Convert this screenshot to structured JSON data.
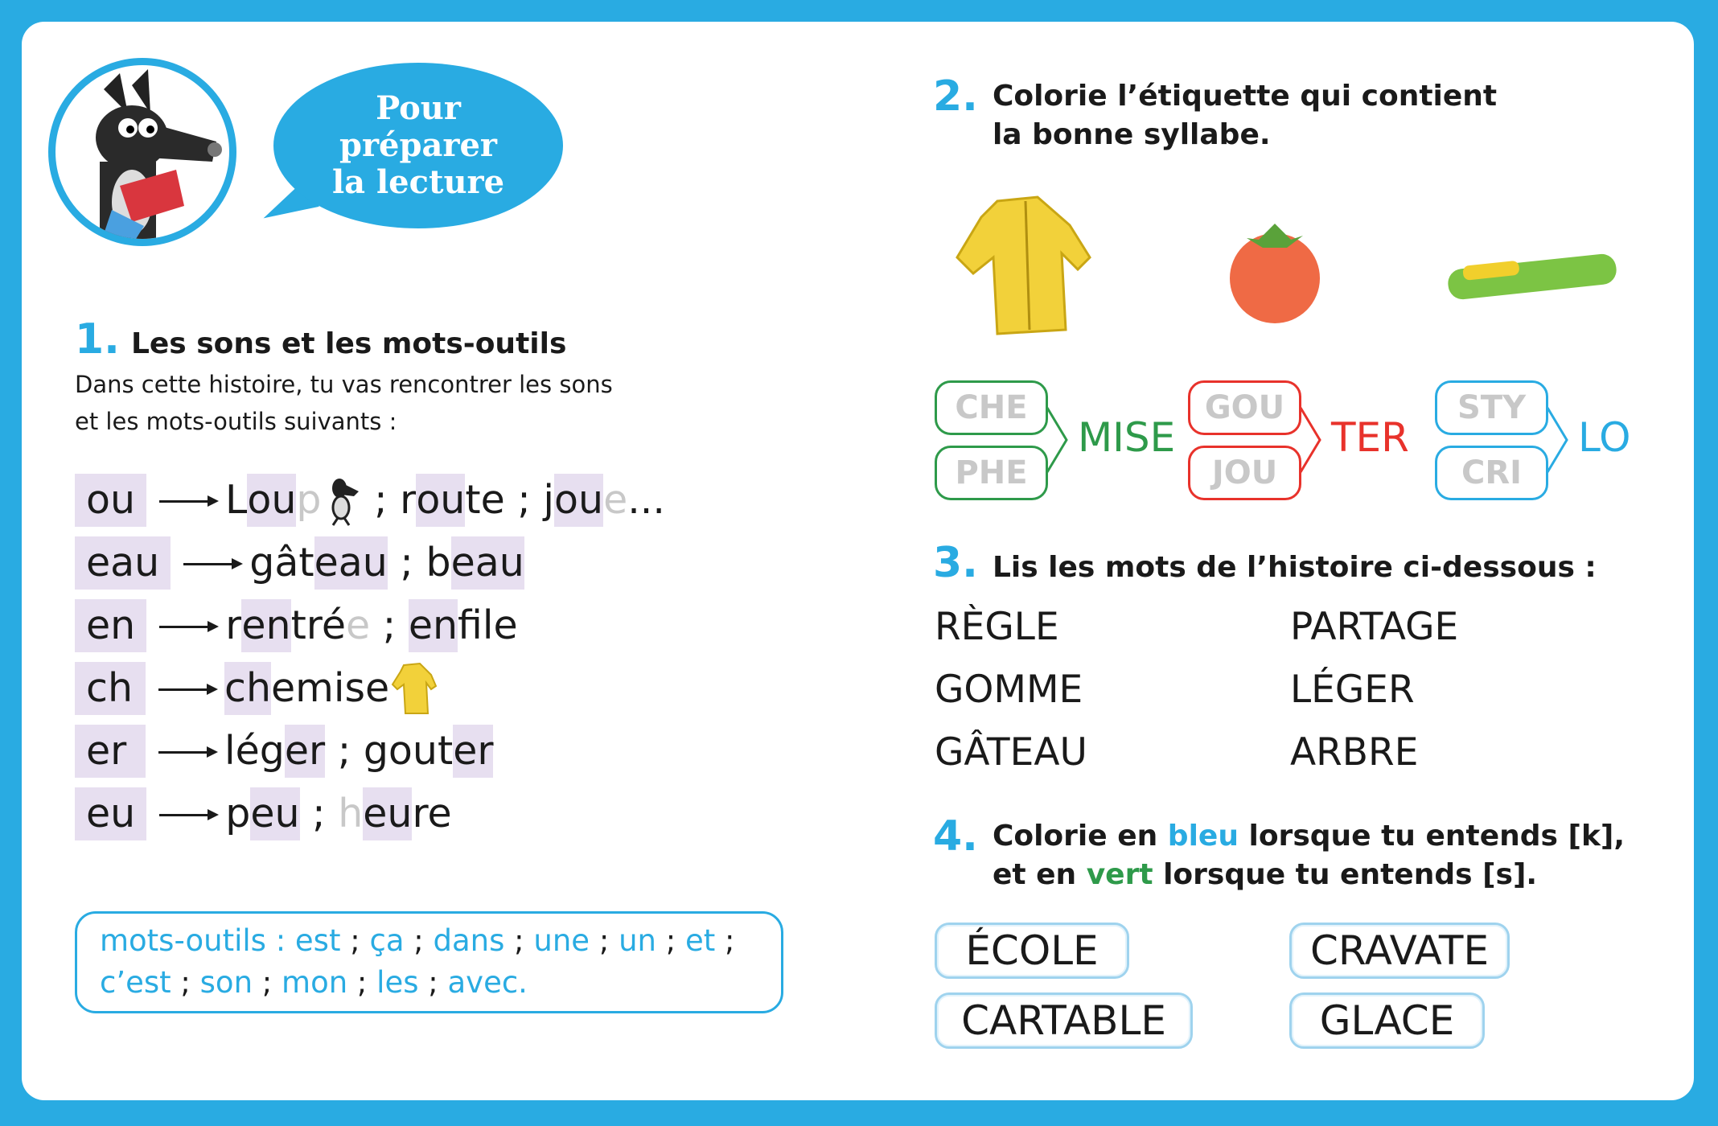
{
  "header": {
    "bubble_lines": [
      "Pour",
      "préparer",
      "la lecture"
    ]
  },
  "section1": {
    "number": "1.",
    "title": "Les sons et les mots-outils",
    "intro": [
      "Dans cette histoire, tu vas rencontrer les sons",
      "et les mots-outils suivants :"
    ],
    "rows": [
      {
        "sound": "ou",
        "words": [
          {
            "t": "L"
          },
          {
            "t": "ou",
            "hl": true
          },
          {
            "t": "p",
            "fade": true
          },
          {
            "t": "[wolf]",
            "icon": "wolf"
          },
          {
            "t": " ; r"
          },
          {
            "t": "ou",
            "hl": true
          },
          {
            "t": "te ; j"
          },
          {
            "t": "ou",
            "hl": true
          },
          {
            "t": "e",
            "fade": true
          },
          {
            "t": "..."
          }
        ]
      },
      {
        "sound": "eau",
        "words": [
          {
            "t": "gât"
          },
          {
            "t": "eau",
            "hl": true
          },
          {
            "t": " ; b"
          },
          {
            "t": "eau",
            "hl": true
          }
        ]
      },
      {
        "sound": "en",
        "words": [
          {
            "t": "r"
          },
          {
            "t": "en",
            "hl": true
          },
          {
            "t": "tré"
          },
          {
            "t": "e",
            "fade": true
          },
          {
            "t": " ; "
          },
          {
            "t": "en",
            "hl": true
          },
          {
            "t": "file"
          }
        ]
      },
      {
        "sound": "ch",
        "words": [
          {
            "t": "ch",
            "hl": true
          },
          {
            "t": "emise"
          },
          {
            "t": "[shirt]",
            "icon": "shirt"
          }
        ]
      },
      {
        "sound": "er",
        "words": [
          {
            "t": "lég"
          },
          {
            "t": "er",
            "hl": true
          },
          {
            "t": " ; gout"
          },
          {
            "t": "er",
            "hl": true
          }
        ]
      },
      {
        "sound": "eu",
        "words": [
          {
            "t": "p"
          },
          {
            "t": "eu",
            "hl": true
          },
          {
            "t": " ; "
          },
          {
            "t": "h",
            "fade": true
          },
          {
            "t": "eu",
            "hl": true
          },
          {
            "t": "re"
          }
        ]
      }
    ],
    "mots_outils": {
      "label": "mots-outils : ",
      "line1": [
        "est",
        "ça",
        "dans",
        "une",
        "un",
        "et"
      ],
      "line2": [
        "c’est",
        "son",
        "mon",
        "les",
        "avec."
      ]
    }
  },
  "section2": {
    "number": "2.",
    "title": [
      "Colorie l’étiquette qui contient",
      "la bonne syllabe."
    ],
    "groups": [
      {
        "options": [
          "CHE",
          "PHE"
        ],
        "ending": "MISE",
        "color": "#2e9a4a"
      },
      {
        "options": [
          "GOU",
          "JOU"
        ],
        "ending": "TER",
        "color": "#e8322b"
      },
      {
        "options": [
          "STY",
          "CRI"
        ],
        "ending": "LO",
        "color": "#29abe2"
      }
    ]
  },
  "section3": {
    "number": "3.",
    "title": "Lis les mots de l’histoire ci-dessous :",
    "col1": [
      "RÈGLE",
      "GOMME",
      "GÂTEAU"
    ],
    "col2": [
      "PARTAGE",
      "LÉGER",
      "ARBRE"
    ]
  },
  "section4": {
    "number": "4.",
    "line1": [
      "Colorie en ",
      "bleu",
      " lorsque tu entends [k],"
    ],
    "line2": [
      "et en ",
      "vert",
      " lorsque tu entends [s]."
    ],
    "words": [
      "ÉCOLE",
      "CARTABLE",
      "CRAVATE",
      "GLACE"
    ]
  },
  "colors": {
    "blue": "#29abe2",
    "green": "#2e9a4a",
    "red": "#e8322b",
    "highlight": "#e7dff0"
  }
}
